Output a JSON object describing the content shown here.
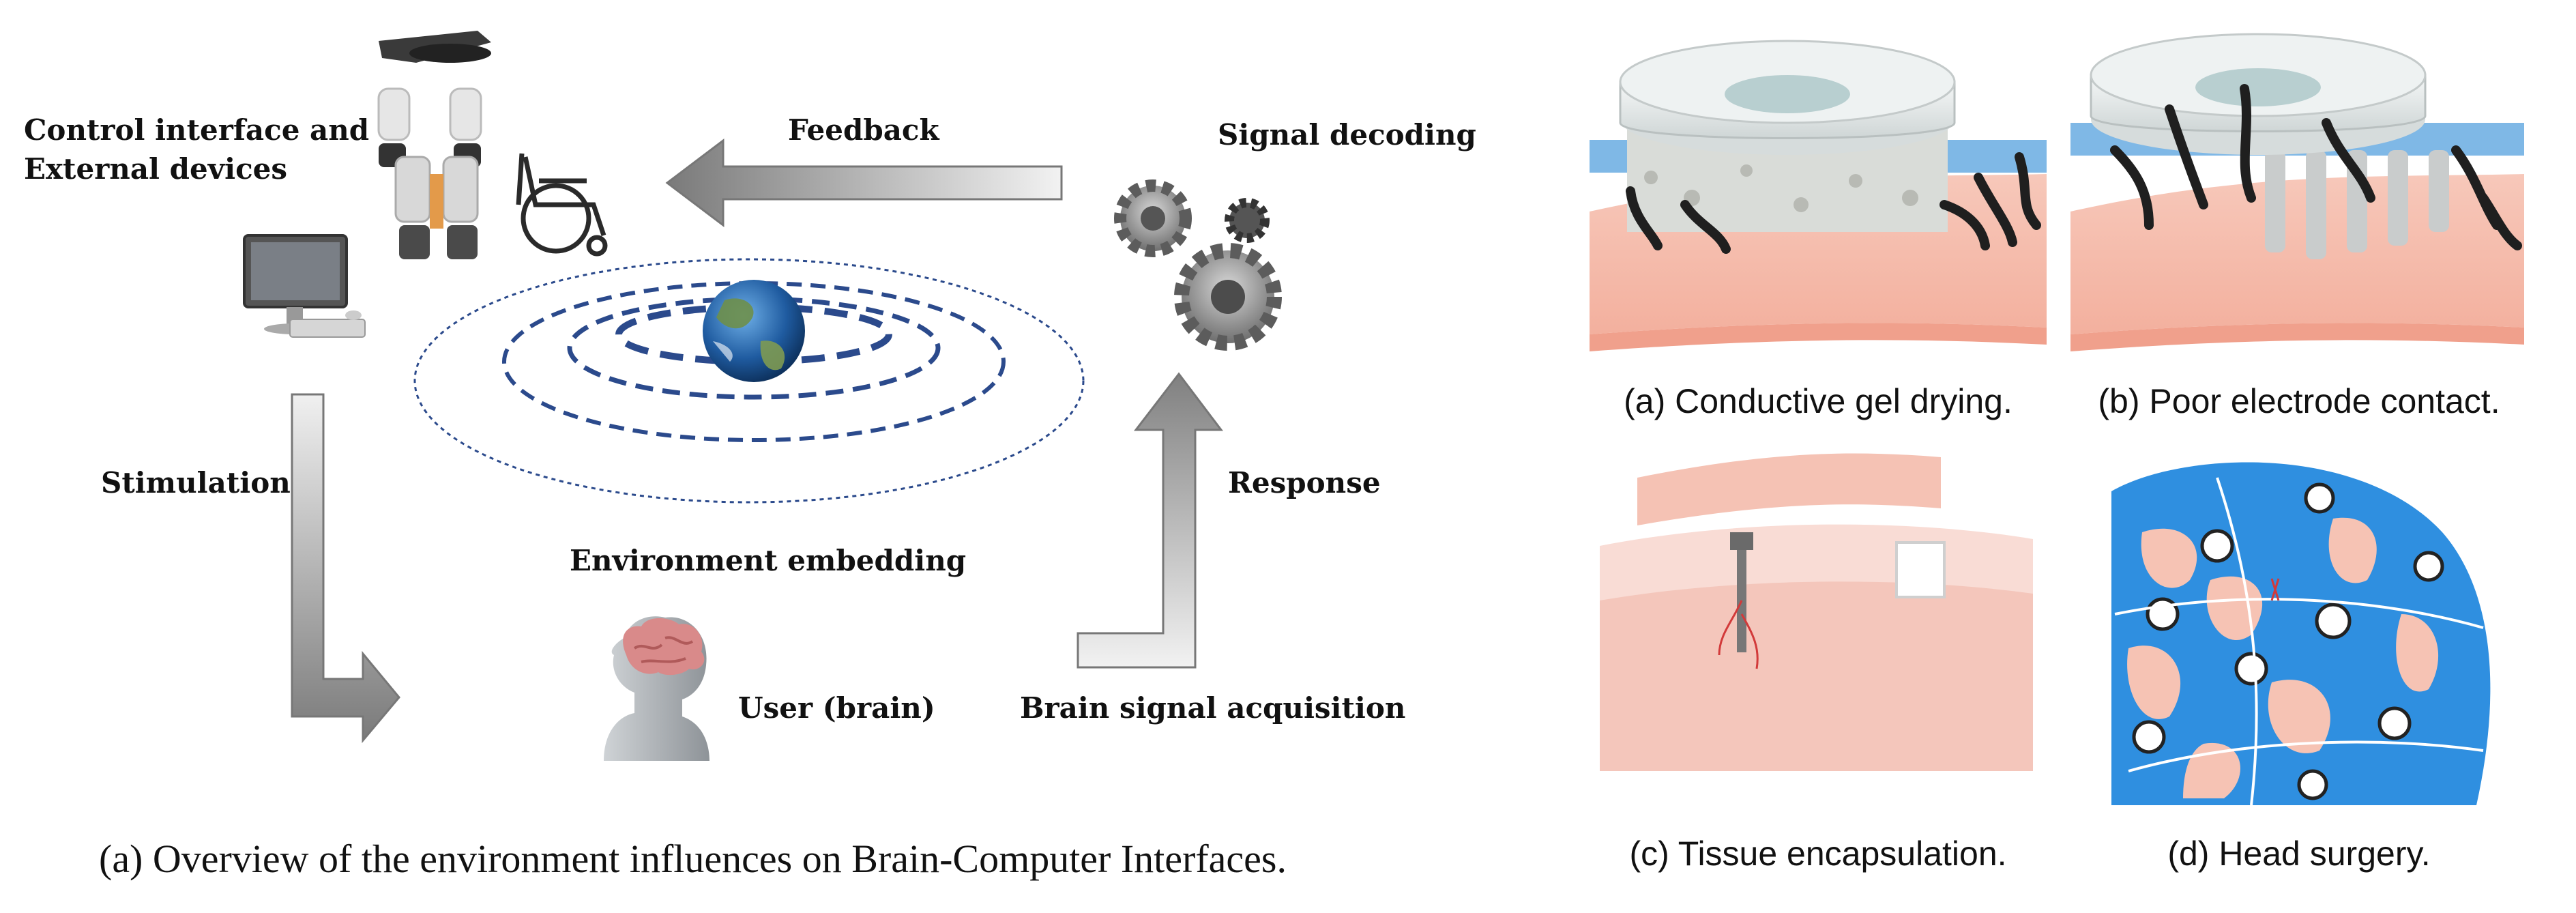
{
  "left_panel": {
    "labels": {
      "control_interface_line1": "Control interface and",
      "control_interface_line2": "External devices",
      "feedback": "Feedback",
      "signal_decoding": "Signal decoding",
      "stimulation": "Stimulation",
      "response": "Response",
      "environment_embedding": "Environment embedding",
      "user_brain": "User (brain)",
      "brain_signal_acquisition": "Brain signal acquisition"
    },
    "caption": "(a) Overview of the environment influences on Brain-Computer Interfaces.",
    "icons": [
      "exoskeleton-icon",
      "wheelchair-icon",
      "computer-icon",
      "gears-icon",
      "earth-icon",
      "brain-head-icon"
    ]
  },
  "right_panel": {
    "subfigures": [
      {
        "caption": "(a) Conductive gel drying."
      },
      {
        "caption": "(b) Poor electrode contact."
      },
      {
        "caption": "(c) Tissue encapsulation."
      },
      {
        "caption": "(d) Head surgery."
      }
    ]
  },
  "colors": {
    "arrow_gray": "#8c8c8c",
    "ring_blue": "#2b4a8c",
    "skin_pink": "#f6c3b4",
    "cap_blue": "#2f8fe0"
  }
}
